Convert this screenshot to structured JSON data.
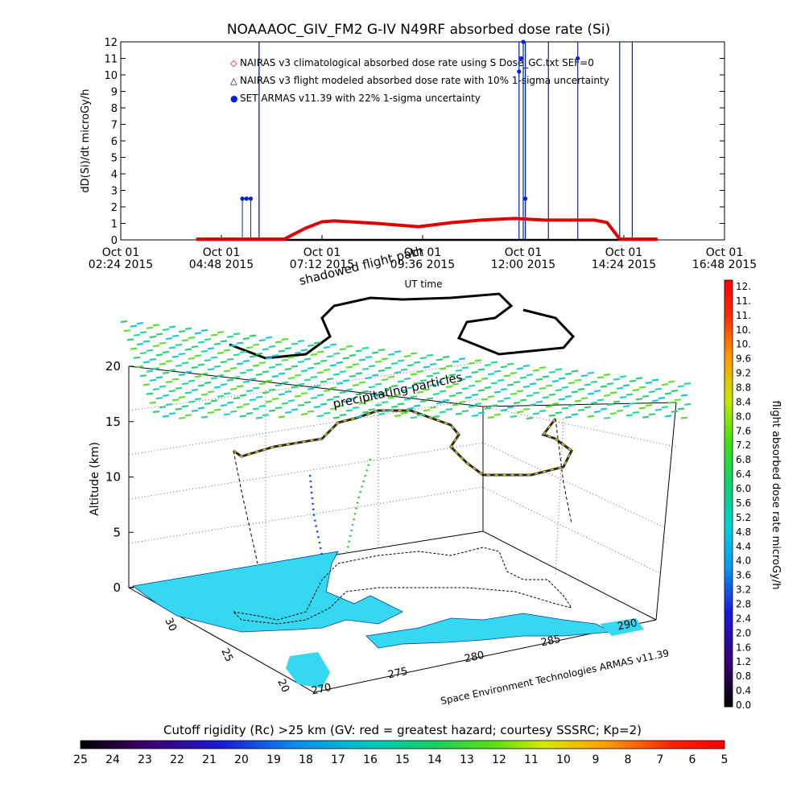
{
  "title": "NOAAAOC_GIV_FM2 G-IV    N49RF  absorbed dose rate (Si)",
  "chart_data": [
    {
      "type": "line",
      "ylabel": "dD(Si)/dt microGy/h",
      "xlabel": "UT time",
      "ylim": [
        0,
        12
      ],
      "y_ticks": [
        "0",
        "1",
        "2",
        "3",
        "4",
        "5",
        "6",
        "7",
        "8",
        "9",
        "10",
        "11",
        "12"
      ],
      "x_ticks": [
        {
          "top": "Oct 01",
          "bottom": "02:24 2015"
        },
        {
          "top": "Oct 01",
          "bottom": "04:48 2015"
        },
        {
          "top": "Oct 01",
          "bottom": "07:12 2015"
        },
        {
          "top": "Oct 01",
          "bottom": "09:36 2015"
        },
        {
          "top": "Oct 01",
          "bottom": "12:00 2015"
        },
        {
          "top": "Oct 01",
          "bottom": "14:24 2015"
        },
        {
          "top": "Oct 01",
          "bottom": "16:48 2015"
        }
      ],
      "legend": [
        {
          "label": "NAIRAS v3 climatological absorbed dose rate using S Dose_GC.txt SEF=0",
          "symbol": "◇",
          "color": "#e00000"
        },
        {
          "label": "NAIRAS v3 flight modeled absorbed dose rate with 10% 1-sigma uncertainty",
          "symbol": "△",
          "color": "#000000"
        },
        {
          "label": "SET ARMAS v11.39 with 22% 1-sigma uncertainty",
          "symbol": "●",
          "color": "#0020e0"
        }
      ],
      "x_unit": "hours UT",
      "xlim": [
        2.4,
        16.8
      ],
      "series": [
        {
          "name": "NAIRAS v3 climatological absorbed dose rate using S Dose_GC.txt SEF=0",
          "x": [
            4.2,
            6.3,
            6.8,
            7.2,
            7.5,
            8.5,
            9.5,
            10.3,
            11.0,
            11.8,
            12.5,
            13.2,
            13.7,
            14.0,
            14.3,
            15.2
          ],
          "values": [
            0.05,
            0.05,
            0.7,
            1.1,
            1.15,
            1.0,
            0.8,
            1.05,
            1.2,
            1.3,
            1.2,
            1.2,
            1.2,
            1.05,
            0.05,
            0.05
          ]
        },
        {
          "name": "NAIRAS v3 flight modeled absorbed dose rate with 10% 1-sigma uncertainty",
          "x": [
            4.2,
            15.2
          ],
          "values": [
            0.0,
            0.0
          ]
        },
        {
          "name": "SET ARMAS v11.39 with 22% 1-sigma uncertainty",
          "points": [
            {
              "x": 5.3,
              "y": 2.5
            },
            {
              "x": 5.4,
              "y": 2.5
            },
            {
              "x": 5.5,
              "y": 2.5
            },
            {
              "x": 11.9,
              "y": 10.2
            },
            {
              "x": 11.95,
              "y": 11.0
            },
            {
              "x": 12.0,
              "y": 12.0
            },
            {
              "x": 12.05,
              "y": 2.5
            },
            {
              "x": 13.3,
              "y": 11.0
            }
          ],
          "spikes_x": [
            5.7,
            11.9,
            12.0,
            12.05,
            12.6,
            13.3,
            14.3,
            14.6
          ]
        }
      ]
    },
    {
      "type": "scatter",
      "subtype": "3d-flight-track",
      "zlabel": "Altitude (km)",
      "z_ticks": [
        "0",
        "5",
        "10",
        "15",
        "20"
      ],
      "lat_ticks": [
        "30",
        "25",
        "20"
      ],
      "lon_ticks": [
        "270",
        "275",
        "280",
        "285",
        "290"
      ],
      "annotations": [
        "shadowed flight path",
        "precipitating particles"
      ],
      "credit": "Space Environment Technologies ARMAS v11.39",
      "colorbar": {
        "label": "flight absorbed dose rate microGy/h",
        "range": [
          0.0,
          12.0
        ],
        "ticks": [
          "12.",
          "11.",
          "11.",
          "10.",
          "10.",
          "9.6",
          "9.2",
          "8.8",
          "8.4",
          "8.0",
          "7.6",
          "7.2",
          "6.8",
          "6.4",
          "6.0",
          "5.6",
          "5.2",
          "4.8",
          "4.4",
          "4.0",
          "3.6",
          "3.2",
          "2.8",
          "2.4",
          "2.0",
          "1.6",
          "1.2",
          "0.8",
          "0.4",
          "0.0"
        ]
      }
    }
  ],
  "rigidity_bar": {
    "label": "Cutoff rigidity (Rc) >25 km (GV: red = greatest hazard; courtesy SSSRC; Kp=2)",
    "ticks": [
      "25",
      "24",
      "23",
      "22",
      "21",
      "20",
      "19",
      "18",
      "17",
      "16",
      "15",
      "14",
      "13",
      "12",
      "11",
      "10",
      "9",
      "8",
      "7",
      "6",
      "5"
    ]
  }
}
